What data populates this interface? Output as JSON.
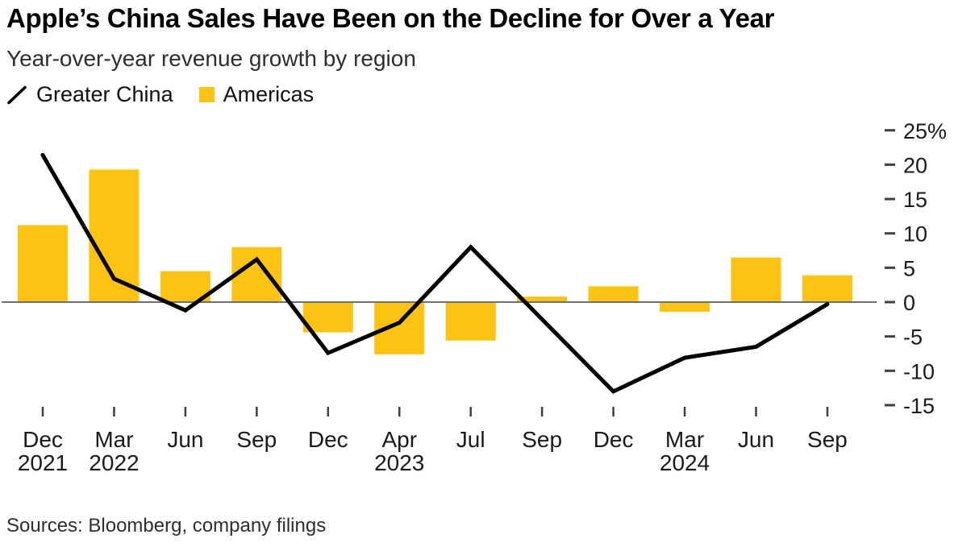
{
  "header": {
    "title": "Apple’s China Sales Have Been on the Decline for Over a Year",
    "subtitle": "Year-over-year revenue growth by region"
  },
  "legend": {
    "items": [
      {
        "label": "Greater China",
        "marker": "line-slash",
        "color": "#000000"
      },
      {
        "label": "Americas",
        "marker": "square",
        "color": "#FDC313"
      }
    ]
  },
  "footer": {
    "sources": "Sources: Bloomberg, company filings"
  },
  "colors": {
    "bar": "#FDC313",
    "line": "#000000",
    "zero_line": "#6F6F6F",
    "tick": "#3F3F3F",
    "axis_text": "#1A1A1A"
  },
  "chart_data": {
    "type": "combo",
    "title": "Apple’s China Sales Have Been on the Decline for Over a Year",
    "subtitle": "Year-over-year revenue growth by region",
    "unit": "%",
    "grid": false,
    "legend_position": "top-left",
    "y_axis_side": "right",
    "ylabel": "",
    "xlabel": "",
    "ylim": [
      -15,
      25
    ],
    "categories": [
      "Dec 2021",
      "Mar 2022",
      "Jun 2022",
      "Sep 2022",
      "Dec 2022",
      "Apr 2023",
      "Jul 2023",
      "Sep 2023",
      "Dec 2023",
      "Mar 2024",
      "Jun 2024",
      "Sep 2024"
    ],
    "x_ticks": [
      {
        "month": "Dec",
        "year": "2021"
      },
      {
        "month": "Mar",
        "year": "2022"
      },
      {
        "month": "Jun",
        "year": ""
      },
      {
        "month": "Sep",
        "year": ""
      },
      {
        "month": "Dec",
        "year": ""
      },
      {
        "month": "Apr",
        "year": "2023"
      },
      {
        "month": "Jul",
        "year": ""
      },
      {
        "month": "Sep",
        "year": ""
      },
      {
        "month": "Dec",
        "year": ""
      },
      {
        "month": "Mar",
        "year": "2024"
      },
      {
        "month": "Jun",
        "year": ""
      },
      {
        "month": "Sep",
        "year": ""
      }
    ],
    "y_ticks": [
      {
        "value": 25,
        "label": "25%"
      },
      {
        "value": 20,
        "label": "20"
      },
      {
        "value": 15,
        "label": "15"
      },
      {
        "value": 10,
        "label": "10"
      },
      {
        "value": 5,
        "label": "5"
      },
      {
        "value": 0,
        "label": "0"
      },
      {
        "value": -5,
        "label": "-5"
      },
      {
        "value": -10,
        "label": "-10"
      },
      {
        "value": -15,
        "label": "-15"
      }
    ],
    "series": [
      {
        "name": "Americas",
        "type": "bar",
        "color": "#FDC313",
        "values": [
          11.2,
          19.3,
          4.5,
          8.0,
          -4.4,
          -7.6,
          -5.6,
          0.8,
          2.3,
          -1.4,
          6.5,
          3.9
        ]
      },
      {
        "name": "Greater China",
        "type": "line",
        "color": "#000000",
        "values": [
          21.4,
          3.4,
          -1.2,
          6.2,
          -7.4,
          -3.0,
          8.0,
          -2.5,
          -13.0,
          -8.1,
          -6.5,
          -0.3
        ]
      }
    ]
  }
}
